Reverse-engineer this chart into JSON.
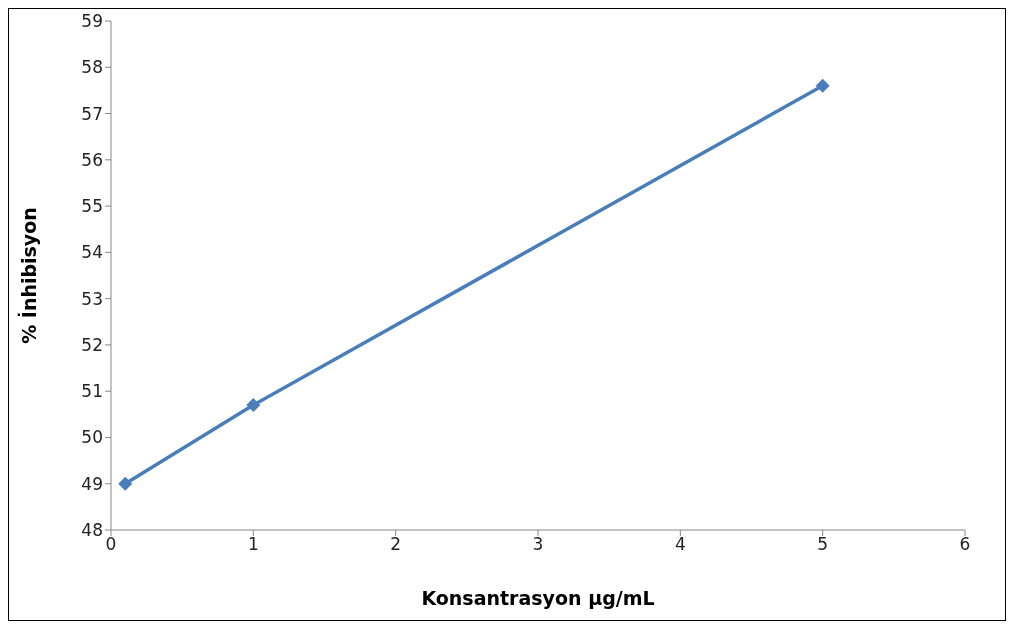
{
  "chart_data": {
    "type": "line",
    "xlabel": "Konsantrasyon µg/mL",
    "ylabel": "% İnhibisyon",
    "x": [
      0.1,
      1,
      5
    ],
    "series": [
      {
        "color": "#4a7ebb",
        "values": [
          49,
          50.7,
          57.6
        ]
      }
    ],
    "xlim": [
      0,
      6
    ],
    "xticks": [
      0,
      1,
      2,
      3,
      4,
      5,
      6
    ],
    "ylim": [
      48,
      59
    ],
    "yticks": [
      48,
      49,
      50,
      51,
      52,
      53,
      54,
      55,
      56,
      57,
      58,
      59
    ],
    "grid": false,
    "legend": false,
    "marker": "diamond",
    "line_style": "solid"
  }
}
